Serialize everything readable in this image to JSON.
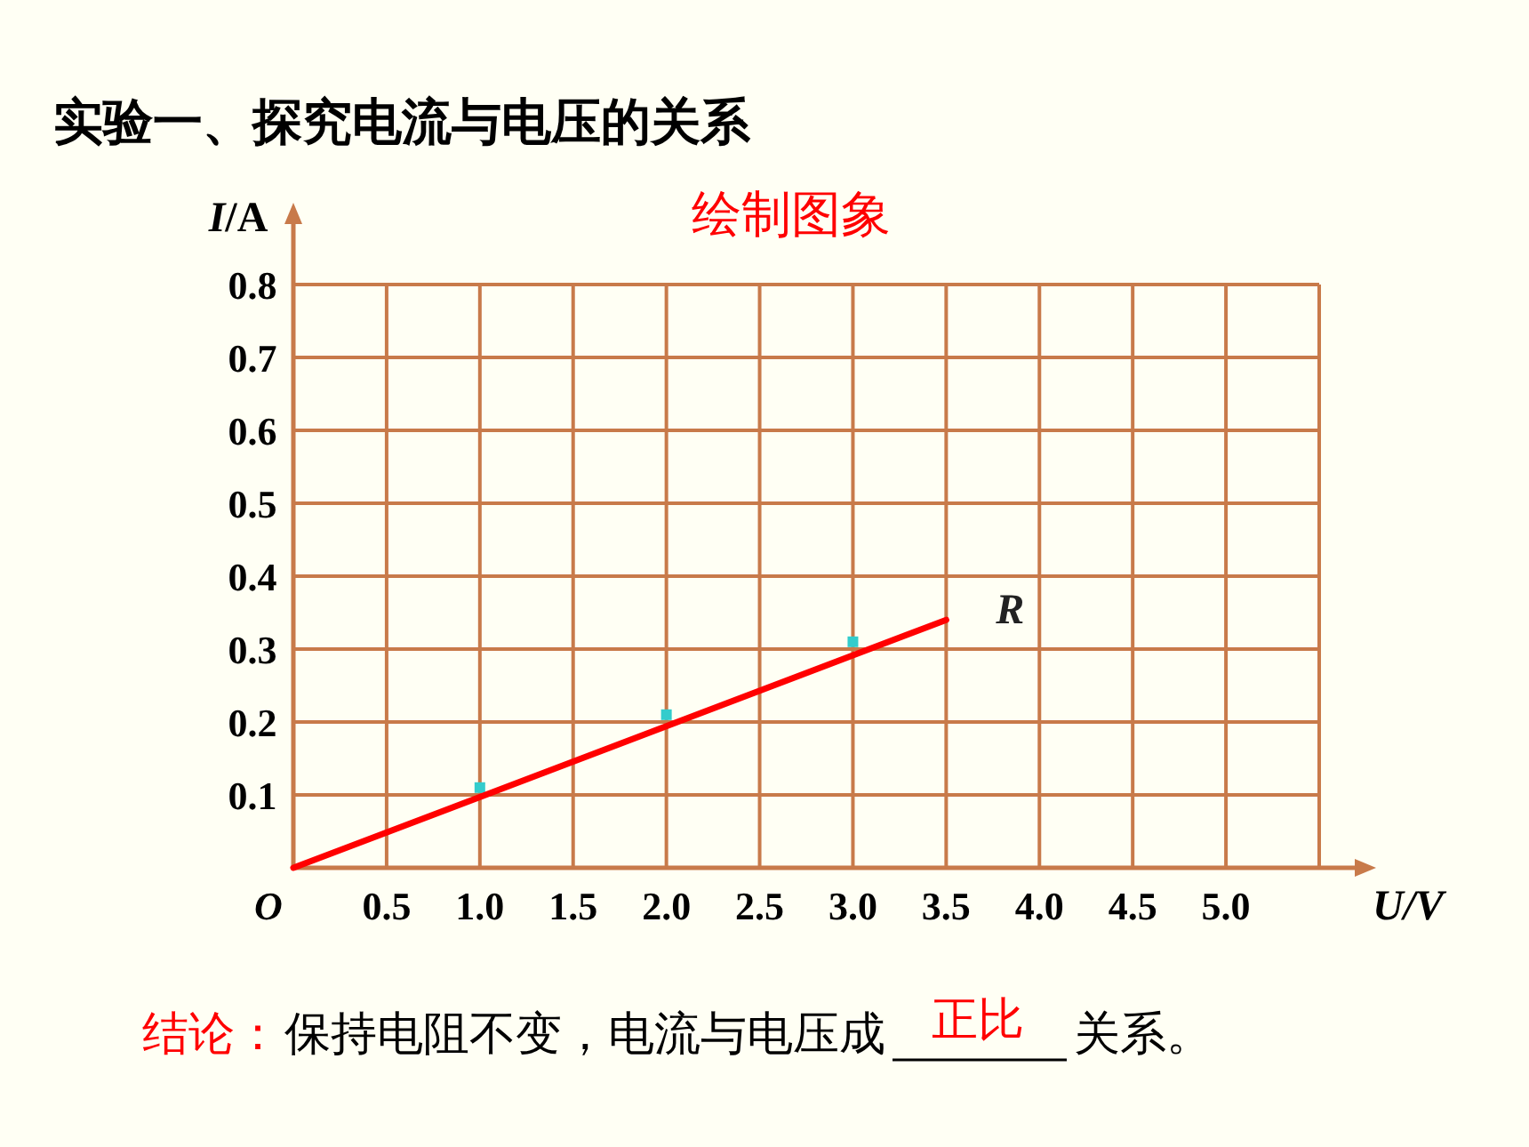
{
  "chart_data": {
    "type": "line",
    "title": "实验一、探究电流与电压的关系",
    "subtitle": "绘制图象",
    "xlabel": "U/V",
    "ylabel": "*I*/A",
    "xlim": [
      0,
      5.5
    ],
    "ylim": [
      0,
      0.8
    ],
    "xticks": [
      {
        "value": 0.5,
        "label": "0.5"
      },
      {
        "value": 1,
        "label": "1.0"
      },
      {
        "value": 1.5,
        "label": "1.5"
      },
      {
        "value": 2,
        "label": "2.0"
      },
      {
        "value": 2.5,
        "label": "2.5"
      },
      {
        "value": 3,
        "label": "3.0"
      },
      {
        "value": 3.5,
        "label": "3.5"
      },
      {
        "value": 4,
        "label": "4.0"
      },
      {
        "value": 4.5,
        "label": "4.5"
      },
      {
        "value": 5,
        "label": "5.0"
      },
      {
        "value": 5.5,
        "label": null
      }
    ],
    "yticks": [
      0.1,
      0.2,
      0.3,
      0.4,
      0.5,
      0.6,
      0.7,
      0.8
    ],
    "grid": true,
    "legend": false,
    "series": [
      {
        "type": "scatter",
        "marker": "square",
        "color": "#33cccc",
        "x": [
          1,
          2,
          3
        ],
        "values": [
          0.11,
          0.21,
          0.31
        ]
      },
      {
        "type": "line",
        "name": "R",
        "color": "#ff0000",
        "line_style": "solid",
        "marker": "none",
        "x": [
          0,
          3.5
        ],
        "values": [
          0,
          0.34
        ]
      }
    ],
    "annotations": [
      "O",
      "结论：",
      "保持电阻不变，电流与电压成",
      "正比",
      "关系。"
    ]
  }
}
